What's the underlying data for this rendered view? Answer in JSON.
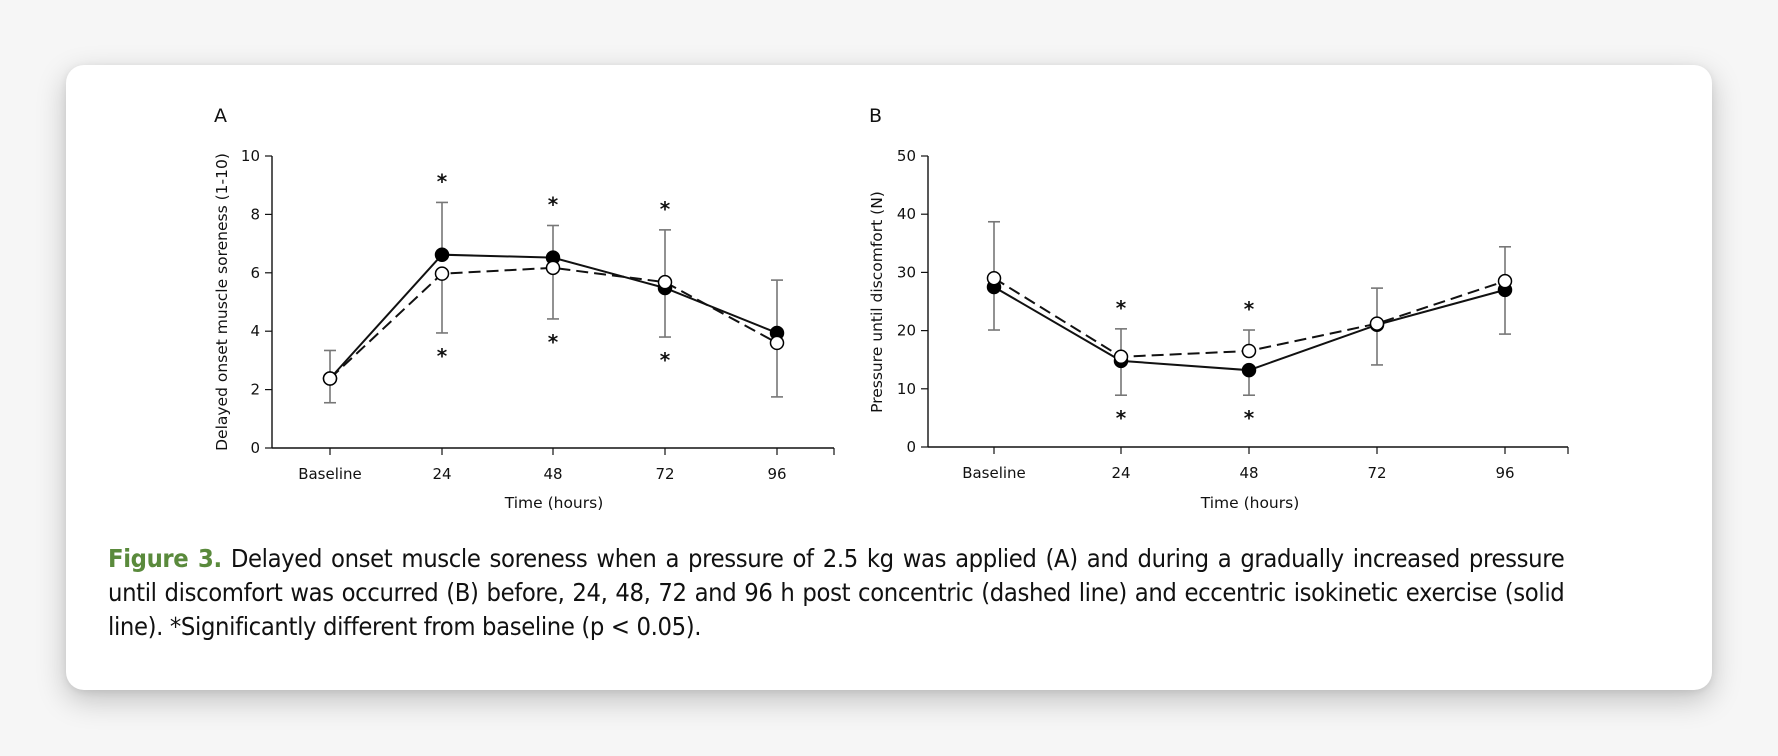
{
  "figure": {
    "label": "Figure 3.",
    "caption": " Delayed onset muscle soreness when a pressure of 2.5 kg was applied (A) and during a gradually increased pressure until discomfort was occurred (B) before, 24, 48, 72 and 96 h post concentric (dashed line) and eccentric isokinetic exercise (solid line). *Significantly different from baseline (p < 0.05).",
    "label_color": "#5a8a3c"
  },
  "chart_data": [
    {
      "panel": "A",
      "type": "line",
      "categories": [
        "Baseline",
        "24",
        "48",
        "72",
        "96"
      ],
      "xlabel": "Time (hours)",
      "ylabel": "Delayed onset muscle soreness (1-10)",
      "ylim": [
        0,
        10
      ],
      "yticks": [
        0,
        2,
        4,
        6,
        8,
        10
      ],
      "grid": false,
      "series": [
        {
          "name": "Eccentric isokinetic exercise",
          "style": "solid",
          "marker": "filled-circle",
          "values": [
            2.38,
            6.62,
            6.52,
            5.48,
            3.94
          ],
          "error_upper": [
            3.34,
            8.41,
            7.62,
            null,
            null
          ],
          "error_lower": [
            1.55,
            null,
            null,
            3.8,
            1.75
          ],
          "significant": [
            false,
            true,
            true,
            true,
            false
          ],
          "significance_marker_position": "above"
        },
        {
          "name": "Concentric isokinetic exercise",
          "style": "dashed",
          "marker": "open-circle",
          "values": [
            2.38,
            5.97,
            6.17,
            5.68,
            3.6
          ],
          "error_upper": [
            null,
            null,
            null,
            7.47,
            5.75
          ],
          "error_lower": [
            null,
            3.94,
            4.42,
            null,
            null
          ],
          "significant": [
            false,
            true,
            true,
            true,
            false
          ],
          "significance_marker_position": "below"
        }
      ]
    },
    {
      "panel": "B",
      "type": "line",
      "categories": [
        "Baseline",
        "24",
        "48",
        "72",
        "96"
      ],
      "xlabel": "Time (hours)",
      "ylabel": "Pressure until discomfort (N)",
      "ylim": [
        0,
        50
      ],
      "yticks": [
        0,
        10,
        20,
        30,
        40,
        50
      ],
      "grid": false,
      "series": [
        {
          "name": "Eccentric isokinetic exercise",
          "style": "solid",
          "marker": "filled-circle",
          "values": [
            27.5,
            14.8,
            13.2,
            21.0,
            27.0
          ],
          "error_upper": [
            null,
            null,
            null,
            null,
            null
          ],
          "error_lower": [
            20.1,
            8.9,
            8.9,
            14.1,
            19.4
          ],
          "significant": [
            false,
            true,
            true,
            false,
            false
          ],
          "significance_marker_position": "below"
        },
        {
          "name": "Concentric isokinetic exercise",
          "style": "dashed",
          "marker": "open-circle",
          "values": [
            29.0,
            15.5,
            16.5,
            21.2,
            28.5
          ],
          "error_upper": [
            38.7,
            20.3,
            20.1,
            27.3,
            34.4
          ],
          "error_lower": [
            null,
            null,
            null,
            null,
            null
          ],
          "significant": [
            false,
            true,
            true,
            false,
            false
          ],
          "significance_marker_position": "above"
        }
      ]
    }
  ]
}
